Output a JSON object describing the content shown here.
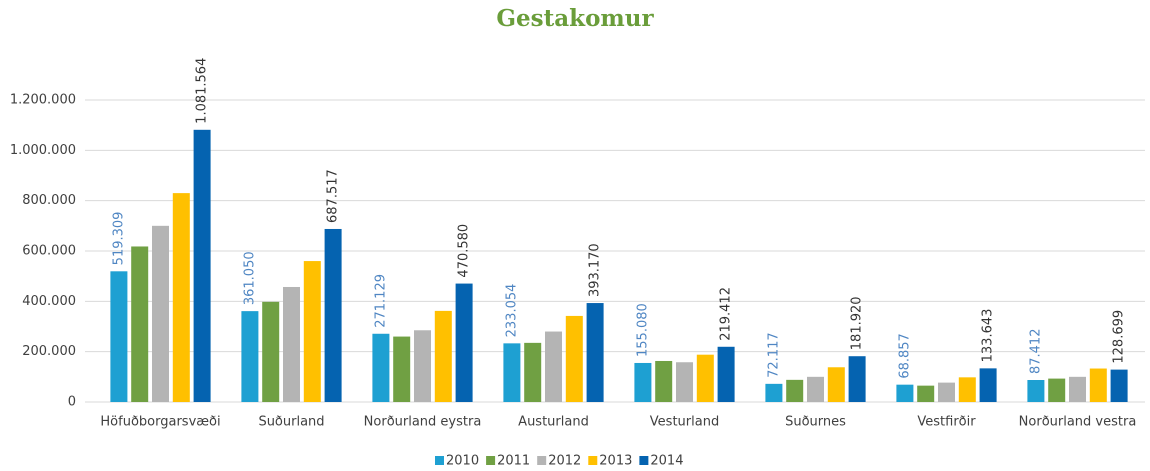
{
  "chart_data": {
    "type": "bar",
    "title": "Gestakomur",
    "categories": [
      "Höfuðborgarsvæði",
      "Suðurland",
      "Norðurland eystra",
      "Austurland",
      "Vesturland",
      "Suðurnes",
      "Vestfirðir",
      "Norðurland vestra"
    ],
    "series": [
      {
        "name": "2010",
        "color": "#1ea0d2",
        "values": [
          519309,
          361050,
          271129,
          233054,
          155080,
          72117,
          68857,
          87412
        ],
        "value_labels": [
          "519.309",
          "361.050",
          "271.129",
          "233.054",
          "155.080",
          "72.117",
          "68.857",
          "87.412"
        ]
      },
      {
        "name": "2011",
        "color": "#70a043",
        "values": [
          618000,
          398000,
          260000,
          235000,
          163000,
          88000,
          65000,
          93000
        ]
      },
      {
        "name": "2012",
        "color": "#b4b4b4",
        "values": [
          700000,
          457000,
          285000,
          280000,
          158000,
          100000,
          77000,
          100000
        ]
      },
      {
        "name": "2013",
        "color": "#ffc000",
        "values": [
          830000,
          560000,
          362000,
          342000,
          188000,
          138000,
          98000,
          133000
        ]
      },
      {
        "name": "2014",
        "color": "#0563b0",
        "values": [
          1081564,
          687517,
          470580,
          393170,
          219412,
          181920,
          133643,
          128699
        ],
        "value_labels": [
          "1.081.564",
          "687.517",
          "470.580",
          "393.170",
          "219.412",
          "181.920",
          "133.643",
          "128.699"
        ]
      }
    ],
    "ylim": [
      0,
      1200000
    ],
    "yticks": [
      0,
      {
        "value": 200000,
        "label": "200.000"
      },
      {
        "value": 400000,
        "label": "400.000"
      },
      {
        "value": 600000,
        "label": "600.000"
      },
      {
        "value": 800000,
        "label": "800.000"
      },
      {
        "value": 1000000,
        "label": "1.000.000"
      },
      {
        "value": 1200000,
        "label": "1.200.000"
      }
    ],
    "grid": true,
    "legend": "bottom"
  }
}
